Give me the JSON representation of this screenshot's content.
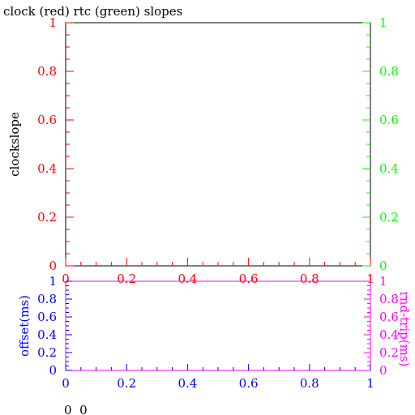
{
  "chart_data": [
    {
      "type": "line",
      "title": "clock (red) rtc (green) slopes",
      "xlabel": "",
      "ylabel": "clockslope",
      "xlim": [
        0,
        1
      ],
      "ylim": [
        0,
        1
      ],
      "right_ylim": [
        0,
        1
      ],
      "x_ticks": [
        "0",
        "0.2",
        "0.4",
        "0.6",
        "0.8",
        "1"
      ],
      "y_ticks": [
        "0",
        "0.2",
        "0.4",
        "0.6",
        "0.8",
        "1"
      ],
      "right_y_ticks": [
        "0",
        "0.2",
        "0.4",
        "0.6",
        "0.8",
        "1"
      ],
      "grid": false,
      "series": [],
      "colors": {
        "frame": "#000000",
        "x_axis": "#ff0000",
        "left_axis": "#ff0000",
        "right_axis": "#00ff00"
      }
    },
    {
      "type": "line",
      "title": "",
      "xlabel": "",
      "ylabel": "offset(ms)",
      "right_ylabel": "rnd-trip(ms)",
      "xlim": [
        0,
        1
      ],
      "ylim": [
        0,
        1
      ],
      "right_ylim": [
        0,
        1
      ],
      "x_ticks": [
        "0",
        "0.2",
        "0.4",
        "0.6",
        "0.8",
        "1"
      ],
      "y_ticks": [
        "0",
        "0.2",
        "0.4",
        "0.6",
        "0.8",
        "1"
      ],
      "right_y_ticks": [
        "0",
        "0.2",
        "0.4",
        "0.6",
        "0.8",
        "1"
      ],
      "grid": false,
      "series": [],
      "colors": {
        "frame": "#ff00ff",
        "x_axis": "#0000ff",
        "left_axis": "#0000ff",
        "right_axis": "#ff00ff"
      }
    }
  ],
  "footer": {
    "text": "0  0"
  }
}
